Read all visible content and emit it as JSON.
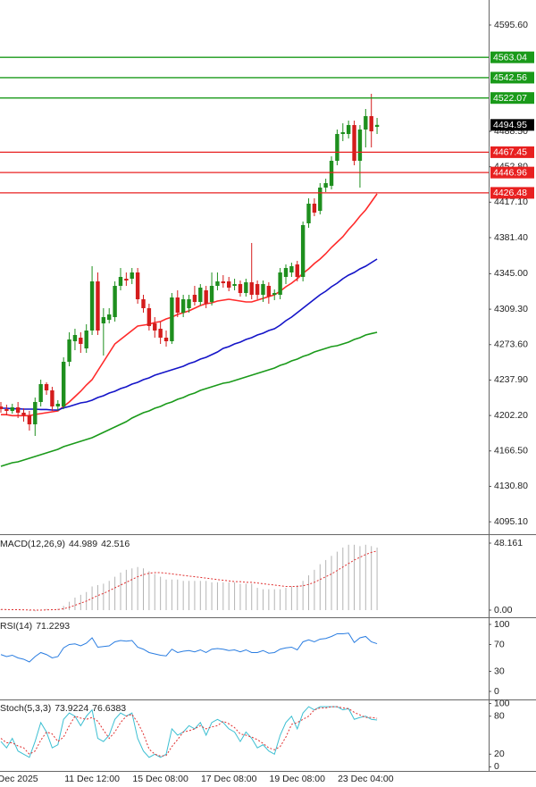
{
  "chart_data": [
    {
      "type": "candlestick",
      "categories": [
        null,
        null,
        null,
        "Dec 2025",
        null,
        null,
        null,
        null,
        null,
        null,
        null,
        null,
        null,
        null,
        null,
        null,
        "11 Dec 12:00",
        null,
        null,
        null,
        null,
        null,
        null,
        null,
        null,
        null,
        null,
        null,
        "15 Dec 08:00",
        null,
        null,
        null,
        null,
        null,
        null,
        null,
        null,
        null,
        null,
        null,
        "17 Dec 08:00",
        null,
        null,
        null,
        null,
        null,
        null,
        null,
        null,
        null,
        null,
        null,
        "19 Dec 08:00",
        null,
        null,
        null,
        null,
        null,
        null,
        null,
        null,
        null,
        null,
        null,
        "23 Dec 04:00",
        null,
        null
      ],
      "open": [
        4211.3,
        4208.6,
        4206.8,
        4210.4,
        4205.0,
        4202.3,
        4193.3,
        4215.8,
        4233.8,
        4227.5,
        4211.3,
        4211.3,
        4256.3,
        4277.0,
        4280.6,
        4269.8,
        4287.8,
        4337.3,
        4295.0,
        4298.6,
        4301.3,
        4332.8,
        4340.0,
        4340.0,
        4346.3,
        4319.3,
        4310.3,
        4295.0,
        4289.6,
        4280.6,
        4277.0,
        4321.1,
        4305.8,
        4310.3,
        4323.8,
        4316.6,
        4328.3,
        4316.6,
        4332.8,
        4337.3,
        4337.3,
        4332.8,
        4334.6,
        4325.6,
        4336.4,
        4334.6,
        4323.8,
        4332.8,
        4323.8,
        4323.8,
        4341.8,
        4346.3,
        4354.4,
        4341.8,
        4395.8,
        4415.6,
        4408.4,
        4431.8,
        4433.6,
        4458.8,
        4485.8,
        4485.8,
        4494.8,
        4458.8,
        4490.3,
        4503.8,
        4493.0
      ],
      "high": [
        4215.8,
        4213.1,
        4214.0,
        4215.8,
        4209.5,
        4206.8,
        4220.3,
        4238.3,
        4235.6,
        4231.1,
        4217.6,
        4260.8,
        4286.0,
        4289.6,
        4286.0,
        4294.1,
        4352.6,
        4346.3,
        4310.3,
        4310.3,
        4337.3,
        4350.8,
        4346.3,
        4350.8,
        4350.8,
        4323.8,
        4314.8,
        4301.3,
        4296.8,
        4287.8,
        4325.6,
        4328.3,
        4323.8,
        4323.8,
        4332.8,
        4334.6,
        4332.8,
        4346.3,
        4346.3,
        4343.6,
        4341.8,
        4340.0,
        4338.2,
        4340.0,
        4376.0,
        4338.2,
        4338.2,
        4336.4,
        4329.2,
        4350.8,
        4354.4,
        4356.2,
        4358.0,
        4397.6,
        4421.0,
        4421.0,
        4436.3,
        4440.8,
        4463.3,
        4490.3,
        4496.6,
        4499.3,
        4499.3,
        4494.8,
        4511.0,
        4526.3,
        4502.0
      ],
      "low": [
        4205.0,
        4202.3,
        4204.1,
        4199.6,
        4196.0,
        4187.0,
        4181.6,
        4211.3,
        4223.0,
        4206.8,
        4206.8,
        4208.6,
        4251.8,
        4268.0,
        4265.3,
        4265.3,
        4283.3,
        4283.3,
        4262.6,
        4295.0,
        4296.8,
        4328.3,
        4332.8,
        4334.6,
        4314.8,
        4305.8,
        4287.8,
        4280.6,
        4274.3,
        4271.6,
        4274.3,
        4301.3,
        4301.3,
        4305.8,
        4313.0,
        4313.0,
        4310.3,
        4313.0,
        4328.3,
        4331.0,
        4327.4,
        4328.3,
        4322.0,
        4322.0,
        4319.3,
        4319.3,
        4316.6,
        4314.8,
        4318.4,
        4319.3,
        4334.6,
        4341.8,
        4337.3,
        4337.3,
        4391.3,
        4403.0,
        4404.8,
        4427.3,
        4430.0,
        4454.3,
        4478.6,
        4481.3,
        4454.3,
        4431.8,
        4472.3,
        4472.3,
        4485.8
      ],
      "close": [
        4208.6,
        4206.8,
        4210.4,
        4205.0,
        4202.3,
        4193.3,
        4215.8,
        4233.8,
        4227.5,
        4211.3,
        4214.0,
        4256.3,
        4278.8,
        4283.3,
        4274.3,
        4287.8,
        4337.3,
        4287.8,
        4301.3,
        4304.0,
        4332.8,
        4341.8,
        4338.2,
        4346.3,
        4319.3,
        4310.3,
        4292.3,
        4287.8,
        4280.6,
        4277.0,
        4321.1,
        4305.8,
        4319.3,
        4319.3,
        4316.6,
        4331.0,
        4314.8,
        4332.8,
        4337.3,
        4335.5,
        4331.0,
        4334.6,
        4325.6,
        4336.4,
        4323.8,
        4323.8,
        4334.6,
        4322.0,
        4325.6,
        4346.3,
        4350.8,
        4352.6,
        4341.8,
        4394.0,
        4415.6,
        4406.6,
        4431.8,
        4436.3,
        4458.8,
        4485.8,
        4487.6,
        4494.8,
        4458.8,
        4490.3,
        4503.8,
        4488.5,
        4494.95
      ],
      "up_color": "#1e8f1e",
      "down_color": "#d41c1c",
      "last_price_color": "#000000",
      "series": [
        {
          "color": "#ff2a2a",
          "values": [
            4203,
            4203,
            4202,
            4202,
            4202,
            4202,
            4203.2,
            4204.1,
            4205.0,
            4205.9,
            4206.8,
            4211.3,
            4215.8,
            4221.2,
            4226.6,
            4232.9,
            4238.3,
            4247.3,
            4256.3,
            4265.3,
            4274.3,
            4278.8,
            4283.3,
            4287.8,
            4292.3,
            4293.2,
            4294.1,
            4295.9,
            4296.8,
            4299.5,
            4301.3,
            4304.0,
            4305.8,
            4307.6,
            4310.3,
            4313.0,
            4314.8,
            4315.7,
            4317.5,
            4318.4,
            4319.3,
            4318.4,
            4317.5,
            4316.6,
            4316.6,
            4318.4,
            4320.2,
            4322.0,
            4323.8,
            4327.4,
            4331.9,
            4335.5,
            4340.0,
            4345.4,
            4349.9,
            4355.3,
            4359.8,
            4365.2,
            4371.5,
            4376.9,
            4382.3,
            4389.5,
            4395.8,
            4403.0,
            4409.3,
            4417.4,
            4425.5
          ]
        },
        {
          "color": "#1414c8",
          "values": [
            4209.5,
            4209.5,
            4209.0,
            4209.0,
            4208.6,
            4208.6,
            4208.6,
            4208.2,
            4208.2,
            4207.7,
            4207.7,
            4209.9,
            4211.3,
            4213.1,
            4214.9,
            4215.8,
            4217.6,
            4220.3,
            4222.1,
            4224.8,
            4226.6,
            4229.3,
            4231.1,
            4233.8,
            4235.6,
            4238.3,
            4240.1,
            4242.8,
            4244.6,
            4246.4,
            4248.2,
            4250.0,
            4251.8,
            4254.5,
            4256.3,
            4259.0,
            4260.8,
            4263.5,
            4266.2,
            4269.8,
            4271.6,
            4274.3,
            4276.1,
            4278.8,
            4280.6,
            4283.3,
            4285.1,
            4287.8,
            4289.6,
            4293.2,
            4297.7,
            4301.3,
            4305.8,
            4310.3,
            4314.8,
            4319.3,
            4323.8,
            4327.4,
            4331.9,
            4335.5,
            4340.0,
            4343.6,
            4346.3,
            4349.9,
            4352.6,
            4356.2,
            4359.8
          ]
        },
        {
          "color": "#1a9a1a",
          "values": [
            4151.0,
            4152.8,
            4154.6,
            4155.5,
            4157.3,
            4159.1,
            4160.9,
            4162.7,
            4164.5,
            4166.3,
            4168.1,
            4170.8,
            4172.6,
            4174.4,
            4176.2,
            4178.0,
            4179.8,
            4182.5,
            4185.2,
            4187.9,
            4190.6,
            4193.3,
            4196.0,
            4199.6,
            4202.3,
            4205.0,
            4206.8,
            4209.5,
            4211.3,
            4214.0,
            4215.8,
            4218.5,
            4220.3,
            4223.0,
            4224.8,
            4227.5,
            4229.3,
            4231.1,
            4232.9,
            4234.7,
            4235.6,
            4237.4,
            4239.2,
            4241.0,
            4242.8,
            4244.6,
            4246.4,
            4248.2,
            4250.0,
            4252.7,
            4254.5,
            4257.2,
            4259.0,
            4261.7,
            4263.5,
            4266.2,
            4268.0,
            4269.8,
            4271.6,
            4272.5,
            4274.3,
            4276.1,
            4278.8,
            4280.6,
            4283.3,
            4284.7,
            4286.0
          ]
        }
      ],
      "levels": [
        {
          "value": 4563.04,
          "color": "#1a9a1a"
        },
        {
          "value": 4542.56,
          "color": "#1a9a1a"
        },
        {
          "value": 4522.07,
          "color": "#1a9a1a"
        },
        {
          "value": 4467.45,
          "color": "#e82020"
        },
        {
          "value": 4446.96,
          "color": "#e82020"
        },
        {
          "value": 4426.48,
          "color": "#e82020"
        }
      ],
      "ylim": [
        4083.5,
        4620.8
      ],
      "yticks": [
        {
          "value": 4595.6,
          "label": "4595.60"
        },
        {
          "value": 4488.5,
          "label": "4488.50"
        },
        {
          "value": 4452.8,
          "label": "4452.80"
        },
        {
          "value": 4417.1,
          "label": "4417.10"
        },
        {
          "value": 4381.4,
          "label": "4381.40"
        },
        {
          "value": 4345,
          "label": "4345.00"
        },
        {
          "value": 4309.3,
          "label": "4309.30"
        },
        {
          "value": 4273.6,
          "label": "4273.60"
        },
        {
          "value": 4237.9,
          "label": "4237.90"
        },
        {
          "value": 4202.2,
          "label": "4202.20"
        },
        {
          "value": 4166.5,
          "label": "4166.50"
        },
        {
          "value": 4130.8,
          "label": "4130.80"
        },
        {
          "value": 4095.1,
          "label": "4095.10"
        }
      ]
    },
    {
      "type": "macd",
      "label": "MACD(12,26,9)",
      "series": [
        {
          "style": "histogram",
          "color": "#b4b4b4",
          "values": [
            0.5,
            0.3,
            0.2,
            0.1,
            0,
            -0.5,
            -0.8,
            0.2,
            0.8,
            0.6,
            0.9,
            3,
            6,
            9,
            11,
            13,
            17,
            18,
            19,
            21,
            24,
            27,
            29,
            30,
            31,
            30,
            28,
            26,
            24,
            22,
            22,
            22,
            21,
            21,
            21,
            21,
            21,
            20,
            20,
            20,
            20,
            20,
            19,
            19,
            19,
            16,
            15,
            15,
            15,
            15,
            16,
            17,
            18,
            21,
            25,
            29,
            33,
            36,
            39,
            42,
            45,
            47,
            47,
            46,
            47,
            46,
            44.989
          ]
        },
        {
          "style": "line",
          "dashed": true,
          "color": "#e03030",
          "values": [
            0.5,
            0.4,
            0.3,
            0.3,
            0.2,
            0.1,
            0,
            0,
            0.2,
            0.3,
            0.4,
            1,
            2,
            3.5,
            5,
            6.5,
            8.5,
            10.5,
            12,
            14,
            16,
            18,
            20,
            22,
            24,
            25.5,
            26.5,
            27,
            27,
            26.5,
            26,
            25.5,
            25,
            24.5,
            24,
            23.5,
            23,
            22.5,
            22,
            21.5,
            21,
            20.5,
            20.5,
            20,
            20,
            19.5,
            19,
            18.5,
            18,
            17.5,
            17,
            17,
            17,
            17.5,
            18.5,
            20,
            22,
            24,
            26,
            28.5,
            31,
            33.5,
            36,
            38,
            40,
            41.5,
            42.516
          ]
        }
      ],
      "ylim": [
        -4.5,
        53.3
      ],
      "yticks": [
        48.161,
        {
          "value": 0,
          "label": "0.00"
        }
      ]
    },
    {
      "type": "line",
      "label": "RSI(14)",
      "series": [
        {
          "color": "#2a7de1",
          "values": [
            55,
            52,
            54,
            50,
            48,
            44,
            52,
            58,
            55,
            50,
            52,
            65,
            70,
            71,
            68,
            72,
            80,
            66,
            67,
            68,
            74,
            76,
            75,
            76,
            66,
            63,
            58,
            56,
            54,
            53,
            63,
            58,
            60,
            61,
            59,
            62,
            58,
            63,
            64,
            63,
            61,
            62,
            59,
            62,
            58,
            58,
            61,
            57,
            58,
            63,
            65,
            66,
            62,
            74,
            77,
            74,
            78,
            79,
            82,
            86,
            86,
            87,
            73,
            80,
            82,
            74,
            71.2293
          ]
        }
      ],
      "ylim": [
        -10.7,
        109.3
      ],
      "yticks": [
        100,
        70,
        30,
        0
      ]
    },
    {
      "type": "line",
      "label": "Stoch(5,3,3)",
      "series": [
        {
          "color": "#3cbfd2",
          "values": [
            40,
            30,
            45,
            25,
            20,
            15,
            40,
            70,
            55,
            30,
            35,
            75,
            85,
            80,
            65,
            80,
            90,
            45,
            40,
            50,
            75,
            85,
            80,
            85,
            45,
            25,
            15,
            20,
            15,
            20,
            60,
            50,
            55,
            65,
            60,
            70,
            50,
            70,
            75,
            70,
            60,
            55,
            40,
            55,
            45,
            30,
            35,
            25,
            20,
            50,
            70,
            80,
            60,
            85,
            95,
            90,
            95,
            95,
            95,
            95,
            90,
            92,
            75,
            78,
            80,
            75,
            73.9224
          ]
        },
        {
          "dashed": true,
          "color": "#e03030",
          "values": [
            45,
            38,
            38,
            33,
            30,
            20,
            25,
            42,
            55,
            52,
            40,
            47,
            65,
            80,
            77,
            75,
            78,
            72,
            58,
            45,
            55,
            70,
            80,
            83,
            70,
            52,
            28,
            20,
            17,
            18,
            32,
            43,
            55,
            57,
            60,
            65,
            60,
            63,
            65,
            72,
            68,
            62,
            52,
            50,
            47,
            43,
            37,
            30,
            27,
            32,
            47,
            67,
            70,
            75,
            80,
            90,
            93,
            93,
            95,
            95,
            93,
            92,
            86,
            82,
            78,
            78,
            76.6383
          ]
        }
      ],
      "ylim": [
        -5,
        105
      ],
      "yticks": [
        100,
        80,
        20,
        0
      ]
    }
  ]
}
